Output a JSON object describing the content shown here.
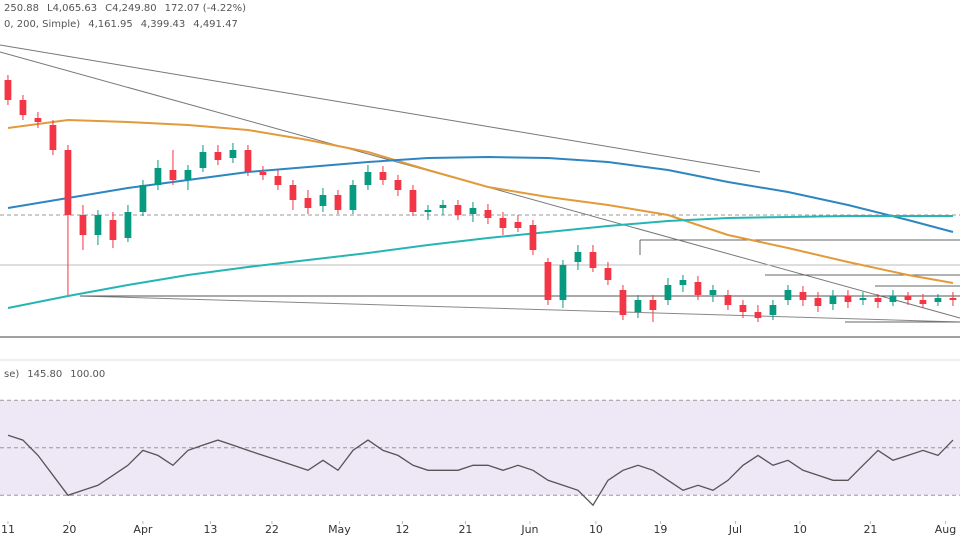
{
  "chart_data": [
    {
      "type": "candlestick",
      "header": [
        "250.88",
        "L4,065.63",
        "C4,249.80",
        "172.07 (-4.22%)"
      ],
      "ma_label": "0, 200, Simple)",
      "x": [
        0,
        1,
        2,
        3,
        4,
        5,
        6,
        7,
        8,
        9,
        10,
        11,
        12,
        13,
        14,
        15,
        16,
        17,
        18,
        19,
        20,
        21,
        22,
        23,
        24,
        25,
        26,
        27,
        28,
        29,
        30,
        31,
        32,
        33,
        34,
        35,
        36,
        37,
        38,
        39,
        40,
        41,
        42,
        43,
        44,
        45,
        46,
        47,
        48,
        49,
        50,
        51,
        52,
        53,
        54,
        55,
        56,
        57,
        58,
        59,
        60,
        61,
        62,
        63
      ],
      "open": [
        5400,
        5300,
        5210,
        5175,
        5050,
        4725,
        4625,
        4700,
        4610,
        4740,
        4875,
        4950,
        4900,
        4960,
        5040,
        5010,
        5050,
        4940,
        4920,
        4875,
        4810,
        4770,
        4825,
        4750,
        4875,
        4940,
        4900,
        4850,
        4740,
        4760,
        4775,
        4730,
        4750,
        4710,
        4690,
        4675,
        4490,
        4300,
        4490,
        4540,
        4460,
        4350,
        4240,
        4300,
        4300,
        4375,
        4390,
        4325,
        4325,
        4275,
        4240,
        4225,
        4300,
        4340,
        4310,
        4280,
        4320,
        4300,
        4310,
        4290,
        4320,
        4300,
        4290,
        4310
      ],
      "high": [
        5425,
        5325,
        5240,
        5200,
        5075,
        4775,
        4750,
        4740,
        4775,
        4900,
        5000,
        5050,
        4975,
        5075,
        5075,
        5085,
        5075,
        4970,
        4950,
        4900,
        4850,
        4860,
        4850,
        4900,
        4975,
        4970,
        4925,
        4875,
        4775,
        4800,
        4800,
        4790,
        4780,
        4740,
        4725,
        4700,
        4510,
        4500,
        4575,
        4575,
        4490,
        4375,
        4325,
        4325,
        4410,
        4425,
        4420,
        4375,
        4350,
        4300,
        4275,
        4300,
        4375,
        4370,
        4340,
        4350,
        4350,
        4340,
        4330,
        4350,
        4340,
        4330,
        4330,
        4340
      ],
      "low": [
        5275,
        5200,
        5160,
        5025,
        4325,
        4550,
        4575,
        4560,
        4590,
        4720,
        4850,
        4875,
        4850,
        4940,
        4975,
        4985,
        4920,
        4900,
        4850,
        4750,
        4730,
        4740,
        4730,
        4730,
        4850,
        4875,
        4820,
        4720,
        4700,
        4725,
        4700,
        4690,
        4680,
        4625,
        4640,
        4525,
        4275,
        4260,
        4450,
        4440,
        4375,
        4200,
        4210,
        4190,
        4275,
        4340,
        4300,
        4290,
        4250,
        4210,
        4190,
        4200,
        4275,
        4270,
        4240,
        4250,
        4260,
        4275,
        4260,
        4270,
        4275,
        4260,
        4270,
        4270
      ],
      "close": [
        5300,
        5225,
        5190,
        5050,
        4725,
        4625,
        4725,
        4600,
        4740,
        4875,
        4960,
        4900,
        4950,
        5040,
        5000,
        5050,
        4940,
        4925,
        4875,
        4800,
        4760,
        4825,
        4750,
        4875,
        4940,
        4900,
        4850,
        4740,
        4750,
        4775,
        4725,
        4760,
        4710,
        4660,
        4660,
        4550,
        4300,
        4475,
        4540,
        4460,
        4400,
        4225,
        4300,
        4250,
        4375,
        4400,
        4325,
        4350,
        4275,
        4240,
        4210,
        4275,
        4350,
        4300,
        4270,
        4320,
        4290,
        4310,
        4290,
        4320,
        4300,
        4280,
        4310,
        4300
      ],
      "up_color": "#089981",
      "down_color": "#f23645",
      "series": [
        {
          "name": "4,161.95",
          "color": "#e39a3b",
          "x": [
            0,
            4,
            8,
            12,
            16,
            20,
            24,
            28,
            32,
            36,
            40,
            44,
            48,
            52,
            56,
            60,
            63
          ],
          "values": [
            5160,
            5200,
            5190,
            5175,
            5150,
            5100,
            5040,
            4950,
            4865,
            4815,
            4775,
            4725,
            4625,
            4560,
            4490,
            4425,
            4385
          ]
        },
        {
          "name": "4,399.43",
          "color": "#2e86c1",
          "x": [
            0,
            4,
            8,
            12,
            16,
            20,
            24,
            28,
            32,
            36,
            40,
            44,
            48,
            52,
            56,
            60,
            63
          ],
          "values": [
            4760,
            4810,
            4860,
            4900,
            4940,
            4965,
            4990,
            5010,
            5015,
            5010,
            4990,
            4950,
            4890,
            4840,
            4775,
            4700,
            4640
          ]
        },
        {
          "name": "4,491.47",
          "color": "#26b5b5",
          "x": [
            0,
            4,
            8,
            12,
            16,
            20,
            24,
            28,
            32,
            36,
            40,
            44,
            48,
            52,
            56,
            60,
            63
          ],
          "values": [
            4260,
            4320,
            4375,
            4425,
            4465,
            4500,
            4535,
            4575,
            4610,
            4640,
            4670,
            4695,
            4710,
            4715,
            4720,
            4720,
            4720
          ]
        }
      ],
      "xlim": [
        -0.53,
        63.47
      ],
      "ylim": [
        4100,
        5600
      ]
    },
    {
      "type": "line",
      "header": [
        "se)",
        "145.80",
        "100.00"
      ],
      "x": [
        0,
        1,
        2,
        3,
        4,
        5,
        6,
        7,
        8,
        9,
        10,
        11,
        12,
        13,
        14,
        15,
        16,
        17,
        18,
        19,
        20,
        21,
        22,
        23,
        24,
        25,
        26,
        27,
        28,
        29,
        30,
        31,
        32,
        33,
        34,
        35,
        36,
        37,
        38,
        39,
        40,
        41,
        42,
        43,
        44,
        45,
        46,
        47,
        48,
        49,
        50,
        51,
        52,
        53,
        54,
        55,
        56,
        57,
        58,
        59,
        60,
        61,
        62,
        63
      ],
      "series": [
        {
          "color": "#555555",
          "values": [
            55.3,
            53.2,
            46.8,
            38.4,
            30,
            32.1,
            34.2,
            38.4,
            42.6,
            48.9,
            46.8,
            42.6,
            48.9,
            51.1,
            53.2,
            51.1,
            48.9,
            46.8,
            44.7,
            42.6,
            40.5,
            44.7,
            40.5,
            48.9,
            53.2,
            48.9,
            46.8,
            42.6,
            40.5,
            40.5,
            40.5,
            42.6,
            42.6,
            40.5,
            42.6,
            40.5,
            36.3,
            34.2,
            32.1,
            25.8,
            36.3,
            40.5,
            42.6,
            40.5,
            36.3,
            32.1,
            34.2,
            32.1,
            36.3,
            42.6,
            46.8,
            42.6,
            44.7,
            40.5,
            38.4,
            36.3,
            36.3,
            42.6,
            48.9,
            44.7,
            46.8,
            48.9,
            46.8,
            53.2
          ]
        }
      ],
      "bands": [
        30,
        50,
        70
      ],
      "band_color": "#ede7f6",
      "xlim": [
        -0.53,
        63.47
      ],
      "ylim": [
        20,
        76
      ],
      "xticks": [
        {
          "value": 0,
          "label": "11"
        },
        {
          "value": 4.1,
          "label": "20"
        },
        {
          "value": 9,
          "label": "Apr"
        },
        {
          "value": 13.5,
          "label": "13"
        },
        {
          "value": 17.6,
          "label": "22"
        },
        {
          "value": 22.1,
          "label": "May"
        },
        {
          "value": 26.3,
          "label": "12"
        },
        {
          "value": 30.5,
          "label": "21"
        },
        {
          "value": 34.8,
          "label": "Jun"
        },
        {
          "value": 39.2,
          "label": "10"
        },
        {
          "value": 43.5,
          "label": "19"
        },
        {
          "value": 48.5,
          "label": "Jul"
        },
        {
          "value": 52.8,
          "label": "10"
        },
        {
          "value": 57.5,
          "label": "21"
        },
        {
          "value": 62.5,
          "label": "Aug"
        }
      ]
    }
  ]
}
